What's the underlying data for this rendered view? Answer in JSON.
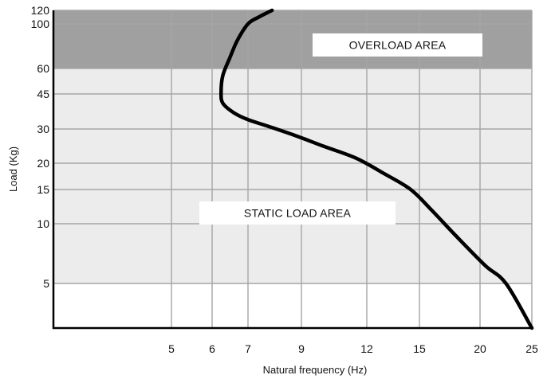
{
  "chart_data": {
    "type": "line",
    "title": "",
    "xlabel": "Natural frequency (Hz)",
    "ylabel": "Load (Kg)",
    "x_ticks": [
      5,
      6,
      7,
      9,
      12,
      15,
      20,
      25
    ],
    "y_ticks": [
      5,
      10,
      15,
      20,
      30,
      45,
      60,
      100,
      120
    ],
    "grid": true,
    "regions": [
      {
        "label": "OVERLOAD AREA",
        "y_from": 60,
        "y_to": 120,
        "color": "#a0a0a0"
      },
      {
        "label": "STATIC LOAD AREA",
        "y_from": 5,
        "y_to": 60,
        "color": "#ececec"
      }
    ],
    "series": [
      {
        "x": [
          7.9,
          7.4,
          7.0,
          6.7,
          6.5,
          6.3,
          6.25,
          6.3,
          6.6,
          7.0,
          7.8,
          8.8,
          10.0,
          11.5,
          13.0,
          14.5,
          16.0,
          18.0,
          20.5,
          22.5,
          25.0
        ],
        "y": [
          120,
          110,
          100,
          85,
          70,
          56,
          46,
          41,
          37,
          34,
          31,
          28,
          25,
          21.5,
          18,
          15,
          12,
          9,
          6.5,
          5,
          3.5
        ]
      }
    ],
    "colors": {
      "overload_fill": "#a0a0a0",
      "static_fill": "#ececec",
      "grid": "#a6a6a6",
      "curve": "#000000",
      "axis": "#000000",
      "label_box": "#ffffff"
    }
  }
}
